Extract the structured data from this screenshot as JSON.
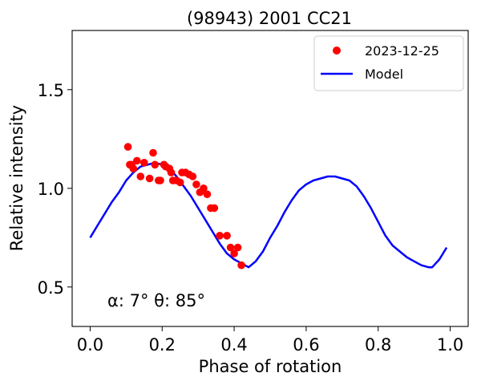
{
  "chart_data": {
    "type": "scatter",
    "title": "(98943) 2001 CC21",
    "xlabel": "Phase of rotation",
    "ylabel": "Relative intensity",
    "xlim": [
      -0.05,
      1.05
    ],
    "ylim": [
      0.3,
      1.8
    ],
    "xticks": [
      0.0,
      0.2,
      0.4,
      0.6,
      0.8,
      1.0
    ],
    "xtick_labels": [
      "0.0",
      "0.2",
      "0.4",
      "0.6",
      "0.8",
      "1.0"
    ],
    "yticks": [
      0.5,
      1.0,
      1.5
    ],
    "ytick_labels": [
      "0.5",
      "1.0",
      "1.5"
    ],
    "grid": false,
    "legend": {
      "position": "top-right",
      "entries": [
        "2023-12-25",
        "Model"
      ]
    },
    "annotation": "α: 7° θ: 85°",
    "series": [
      {
        "name": "2023-12-25",
        "kind": "scatter",
        "color": "#ff0000",
        "points": [
          [
            0.105,
            1.21
          ],
          [
            0.11,
            1.12
          ],
          [
            0.115,
            1.12
          ],
          [
            0.12,
            1.1
          ],
          [
            0.13,
            1.14
          ],
          [
            0.14,
            1.06
          ],
          [
            0.15,
            1.13
          ],
          [
            0.165,
            1.05
          ],
          [
            0.175,
            1.18
          ],
          [
            0.18,
            1.12
          ],
          [
            0.19,
            1.04
          ],
          [
            0.195,
            1.04
          ],
          [
            0.205,
            1.12
          ],
          [
            0.21,
            1.11
          ],
          [
            0.22,
            1.1
          ],
          [
            0.225,
            1.08
          ],
          [
            0.23,
            1.04
          ],
          [
            0.24,
            1.04
          ],
          [
            0.25,
            1.03
          ],
          [
            0.255,
            1.08
          ],
          [
            0.265,
            1.08
          ],
          [
            0.275,
            1.07
          ],
          [
            0.285,
            1.06
          ],
          [
            0.295,
            1.02
          ],
          [
            0.305,
            0.98
          ],
          [
            0.315,
            1.0
          ],
          [
            0.325,
            0.97
          ],
          [
            0.335,
            0.9
          ],
          [
            0.345,
            0.9
          ],
          [
            0.36,
            0.76
          ],
          [
            0.38,
            0.76
          ],
          [
            0.39,
            0.7
          ],
          [
            0.4,
            0.67
          ],
          [
            0.41,
            0.7
          ],
          [
            0.42,
            0.61
          ]
        ]
      },
      {
        "name": "Model",
        "kind": "line",
        "color": "#0000ff",
        "points": [
          [
            0.0,
            0.75
          ],
          [
            0.02,
            0.81
          ],
          [
            0.04,
            0.87
          ],
          [
            0.06,
            0.93
          ],
          [
            0.08,
            0.98
          ],
          [
            0.1,
            1.04
          ],
          [
            0.12,
            1.08
          ],
          [
            0.14,
            1.11
          ],
          [
            0.16,
            1.12
          ],
          [
            0.18,
            1.13
          ],
          [
            0.2,
            1.12
          ],
          [
            0.22,
            1.1
          ],
          [
            0.24,
            1.06
          ],
          [
            0.26,
            1.01
          ],
          [
            0.28,
            0.96
          ],
          [
            0.3,
            0.9
          ],
          [
            0.32,
            0.84
          ],
          [
            0.34,
            0.78
          ],
          [
            0.36,
            0.72
          ],
          [
            0.38,
            0.67
          ],
          [
            0.4,
            0.64
          ],
          [
            0.42,
            0.62
          ],
          [
            0.44,
            0.6
          ],
          [
            0.46,
            0.63
          ],
          [
            0.48,
            0.68
          ],
          [
            0.5,
            0.75
          ],
          [
            0.52,
            0.81
          ],
          [
            0.54,
            0.88
          ],
          [
            0.56,
            0.94
          ],
          [
            0.58,
            0.99
          ],
          [
            0.6,
            1.02
          ],
          [
            0.62,
            1.04
          ],
          [
            0.64,
            1.05
          ],
          [
            0.66,
            1.06
          ],
          [
            0.68,
            1.06
          ],
          [
            0.7,
            1.05
          ],
          [
            0.72,
            1.04
          ],
          [
            0.74,
            1.01
          ],
          [
            0.76,
            0.96
          ],
          [
            0.78,
            0.9
          ],
          [
            0.8,
            0.83
          ],
          [
            0.82,
            0.76
          ],
          [
            0.84,
            0.71
          ],
          [
            0.86,
            0.68
          ],
          [
            0.88,
            0.65
          ],
          [
            0.9,
            0.63
          ],
          [
            0.92,
            0.61
          ],
          [
            0.94,
            0.6
          ],
          [
            0.95,
            0.6
          ],
          [
            0.97,
            0.64
          ],
          [
            0.99,
            0.7
          ]
        ]
      }
    ]
  }
}
